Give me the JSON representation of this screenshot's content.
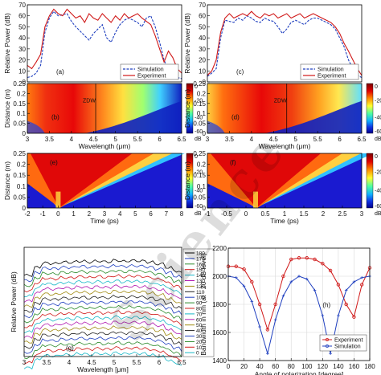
{
  "chart_data": [
    {
      "panel": "(a)",
      "type": "line",
      "ylabel": "Relative Power (dB)",
      "yticks": [
        "0",
        "10",
        "20",
        "30",
        "40",
        "50",
        "60",
        "70"
      ],
      "ylim": [
        0,
        70
      ],
      "xlim": [
        3,
        6.5
      ],
      "legend": [
        "Simulation",
        "Experiment"
      ],
      "legend_position": "bottom-right",
      "series": [
        {
          "name": "Simulation",
          "color": "#1f3fbf",
          "style": "dashed",
          "x": [
            3.0,
            3.1,
            3.2,
            3.3,
            3.4,
            3.5,
            3.6,
            3.7,
            3.8,
            3.9,
            4.0,
            4.1,
            4.2,
            4.3,
            4.4,
            4.5,
            4.6,
            4.7,
            4.8,
            4.9,
            5.0,
            5.1,
            5.2,
            5.3,
            5.4,
            5.5,
            5.6,
            5.7,
            5.8,
            5.9,
            6.0,
            6.1,
            6.2,
            6.3,
            6.4,
            6.5
          ],
          "y": [
            4,
            5,
            8,
            15,
            45,
            58,
            64,
            60,
            61,
            62,
            55,
            50,
            46,
            42,
            38,
            44,
            48,
            52,
            40,
            36,
            45,
            52,
            56,
            58,
            56,
            54,
            50,
            58,
            60,
            50,
            36,
            20,
            10,
            6,
            4,
            3
          ]
        },
        {
          "name": "Experiment",
          "color": "#d01818",
          "style": "solid",
          "x": [
            3.0,
            3.1,
            3.2,
            3.3,
            3.4,
            3.5,
            3.6,
            3.7,
            3.8,
            3.9,
            4.0,
            4.1,
            4.2,
            4.3,
            4.4,
            4.5,
            4.6,
            4.7,
            4.8,
            4.9,
            5.0,
            5.1,
            5.2,
            5.3,
            5.4,
            5.5,
            5.6,
            5.7,
            5.8,
            5.9,
            6.0,
            6.1,
            6.2,
            6.3,
            6.4,
            6.5
          ],
          "y": [
            15,
            12,
            18,
            25,
            50,
            60,
            66,
            62,
            60,
            66,
            62,
            58,
            60,
            54,
            62,
            58,
            56,
            62,
            58,
            54,
            60,
            56,
            62,
            58,
            60,
            62,
            58,
            55,
            52,
            42,
            30,
            18,
            28,
            22,
            12,
            8
          ]
        }
      ]
    },
    {
      "panel": "(b)",
      "type": "heatmap",
      "xlabel": "Wavelength (μm)",
      "ylabel": "Distance (m)",
      "xticks": [
        "3",
        "3.5",
        "4",
        "4.5",
        "5",
        "5.5",
        "6",
        "6.5"
      ],
      "yticks": [
        "0",
        "0.05",
        "0.1",
        "0.15",
        "0.2",
        "0.25"
      ],
      "xlim": [
        3,
        6.5
      ],
      "ylim": [
        0,
        0.25
      ],
      "annotation": "ZDW",
      "zdw_x": 4.55,
      "colorbar": {
        "ticks": [
          "0",
          "-20",
          "-40",
          "-60"
        ],
        "unit": "dB",
        "range": [
          -60,
          0
        ]
      }
    },
    {
      "panel": "(c)",
      "type": "line",
      "ylabel": "Relative Power (dB)",
      "yticks": [
        "0",
        "10",
        "20",
        "30",
        "40",
        "50",
        "60",
        "70"
      ],
      "ylim": [
        0,
        70
      ],
      "xlim": [
        3,
        6.5
      ],
      "legend": [
        "Simulation",
        "Experiment"
      ],
      "legend_position": "bottom-right",
      "series": [
        {
          "name": "Simulation",
          "color": "#1f3fbf",
          "style": "dashed",
          "x": [
            3.0,
            3.1,
            3.2,
            3.3,
            3.4,
            3.5,
            3.6,
            3.7,
            3.8,
            3.9,
            4.0,
            4.1,
            4.2,
            4.3,
            4.4,
            4.5,
            4.6,
            4.7,
            4.8,
            4.9,
            5.0,
            5.1,
            5.2,
            5.3,
            5.4,
            5.5,
            5.6,
            5.7,
            5.8,
            5.9,
            6.0,
            6.1,
            6.2,
            6.3,
            6.4,
            6.5
          ],
          "y": [
            5,
            8,
            12,
            40,
            56,
            55,
            54,
            58,
            56,
            60,
            58,
            55,
            54,
            58,
            56,
            55,
            50,
            44,
            48,
            54,
            56,
            54,
            52,
            56,
            58,
            58,
            56,
            54,
            52,
            48,
            40,
            32,
            20,
            12,
            6,
            4
          ]
        },
        {
          "name": "Experiment",
          "color": "#d01818",
          "style": "solid",
          "x": [
            3.0,
            3.1,
            3.2,
            3.3,
            3.4,
            3.5,
            3.6,
            3.7,
            3.8,
            3.9,
            4.0,
            4.1,
            4.2,
            4.3,
            4.4,
            4.5,
            4.6,
            4.7,
            4.8,
            4.9,
            5.0,
            5.1,
            5.2,
            5.3,
            5.4,
            5.5,
            5.6,
            5.7,
            5.8,
            5.9,
            6.0,
            6.1,
            6.2,
            6.3,
            6.4,
            6.5
          ],
          "y": [
            6,
            10,
            20,
            45,
            58,
            62,
            58,
            60,
            62,
            60,
            64,
            60,
            58,
            62,
            60,
            62,
            58,
            60,
            62,
            58,
            60,
            62,
            58,
            60,
            62,
            60,
            58,
            56,
            54,
            50,
            44,
            35,
            28,
            20,
            12,
            6
          ]
        }
      ]
    },
    {
      "panel": "(d)",
      "type": "heatmap",
      "xlabel": "Wavelength (μm)",
      "ylabel": "Distance (m)",
      "xticks": [
        "3",
        "3.5",
        "4",
        "4.5",
        "5",
        "5.5",
        "6",
        "6.5"
      ],
      "yticks": [
        "0",
        "0.05",
        "0.1",
        "0.15",
        "0.2",
        "0.25"
      ],
      "xlim": [
        3,
        6.5
      ],
      "ylim": [
        0,
        0.25
      ],
      "annotation": "ZDW",
      "zdw_x": 4.8,
      "colorbar": {
        "ticks": [
          "0",
          "-20",
          "-40",
          "-60"
        ],
        "unit": "dB",
        "range": [
          -60,
          0
        ]
      }
    },
    {
      "panel": "(e)",
      "type": "heatmap",
      "xlabel": "Time (ps)",
      "ylabel": "Distance (m)",
      "xticks": [
        "-2",
        "-1",
        "0",
        "1",
        "2",
        "3",
        "4",
        "5",
        "6",
        "7",
        "8"
      ],
      "yticks": [
        "0",
        "0.05",
        "0.1",
        "0.15",
        "0.2",
        "0.25"
      ],
      "xlim": [
        -2,
        8
      ],
      "ylim": [
        0,
        0.25
      ],
      "colorbar": {
        "ticks": [
          "0",
          "-20",
          "-40",
          "-60"
        ],
        "unit": "dB",
        "range": [
          -60,
          0
        ]
      }
    },
    {
      "panel": "(f)",
      "type": "heatmap",
      "xlabel": "Time (ps)",
      "ylabel": "Distance (m)",
      "xticks": [
        "-1",
        "-0.5",
        "0",
        "0.5",
        "1",
        "1.5",
        "2",
        "2.5",
        "3"
      ],
      "yticks": [
        "0",
        "0.05",
        "0.1",
        "0.15",
        "0.2",
        "0.25"
      ],
      "xlim": [
        -1,
        3
      ],
      "ylim": [
        0,
        0.25
      ],
      "colorbar": {
        "ticks": [
          "0",
          "-20",
          "-40",
          "-60"
        ],
        "unit": "dB",
        "range": [
          -60,
          0
        ]
      }
    },
    {
      "panel": "(g)",
      "type": "line",
      "xlabel": "Wavelength [μm]",
      "ylabel": "Relative Power (dB)",
      "xticks": [
        "3",
        "3.5",
        "4",
        "4.5",
        "5",
        "5.5",
        "6",
        "6.5"
      ],
      "xlim": [
        3,
        6.5
      ],
      "legend": [
        "180",
        "170",
        "160",
        "150",
        "140",
        "130",
        "120",
        "110",
        "100",
        "90",
        "80",
        "70",
        "60",
        "50",
        "40",
        "30",
        "20",
        "10",
        "0"
      ],
      "legend_colors": [
        "#000000",
        "#1f3fbf",
        "#2a8a2a",
        "#d01818",
        "#18b8c8",
        "#b018b0",
        "#a08a10",
        "#202020",
        "#1f3fbf",
        "#2a8a2a",
        "#d01818",
        "#18b8c8",
        "#b018b0",
        "#a08a10",
        "#202020",
        "#1f3fbf",
        "#2a8a2a",
        "#d01818",
        "#18b8c8"
      ]
    },
    {
      "panel": "(h)",
      "type": "line",
      "xlabel": "Angle of polarization [degree]",
      "ylabel": "Bandwidth in nm (at - 20 dB level)",
      "xticks": [
        "0",
        "20",
        "40",
        "60",
        "80",
        "100",
        "120",
        "140",
        "160",
        "180"
      ],
      "yticks": [
        "1400",
        "1600",
        "1800",
        "2000",
        "2200"
      ],
      "xlim": [
        0,
        180
      ],
      "ylim": [
        1400,
        2200
      ],
      "legend": [
        "Experiment",
        "Simulation"
      ],
      "legend_position": "bottom-right",
      "series": [
        {
          "name": "Experiment",
          "color": "#d01818",
          "x": [
            0,
            10,
            20,
            30,
            40,
            50,
            60,
            70,
            80,
            90,
            100,
            110,
            120,
            130,
            140,
            150,
            160,
            170,
            180
          ],
          "y": [
            2070,
            2070,
            2050,
            1960,
            1800,
            1620,
            1800,
            2000,
            2120,
            2130,
            2130,
            2120,
            2090,
            2040,
            1940,
            1800,
            1710,
            1940,
            2060
          ]
        },
        {
          "name": "Simulation",
          "color": "#1f3fbf",
          "x": [
            0,
            10,
            20,
            30,
            40,
            50,
            60,
            70,
            80,
            90,
            100,
            110,
            120,
            130,
            140,
            150,
            160,
            170,
            180
          ],
          "y": [
            2000,
            1990,
            1930,
            1820,
            1640,
            1450,
            1690,
            1860,
            1960,
            2000,
            1980,
            1900,
            1720,
            1450,
            1720,
            1900,
            1960,
            1990,
            2000
          ]
        }
      ]
    }
  ]
}
